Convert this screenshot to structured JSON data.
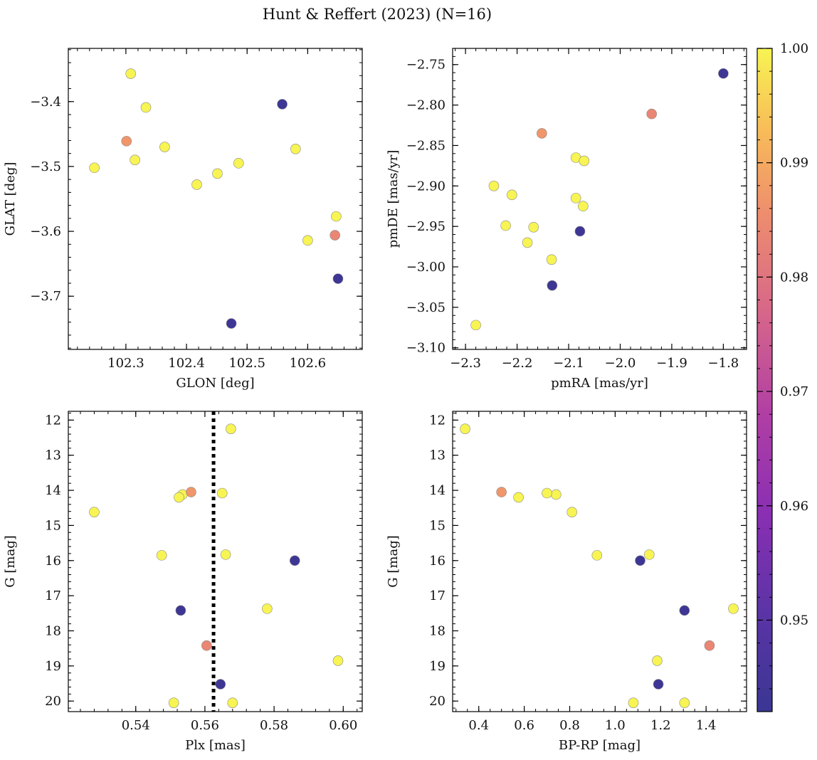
{
  "title": "Hunt & Reffert (2023) (N=16)",
  "colorbar": {
    "min": 0.942,
    "max": 1.0,
    "ticks": [
      0.95,
      0.96,
      0.97,
      0.98,
      0.99,
      1.0
    ],
    "tick_labels": [
      "0.95",
      "0.96",
      "0.97",
      "0.98",
      "0.99",
      "1.00"
    ],
    "colormap": "plasma"
  },
  "stars": [
    {
      "glon": 102.308,
      "glat": -3.357,
      "pmra": -2.28,
      "pmde": -3.072,
      "plx": 0.5675,
      "g": 12.25,
      "bprp": 0.34,
      "prob": 1.0
    },
    {
      "glon": 102.333,
      "glat": -3.409,
      "pmra": -2.245,
      "pmde": -2.9,
      "plx": 0.528,
      "g": 14.62,
      "bprp": 0.81,
      "prob": 1.0
    },
    {
      "glon": 102.301,
      "glat": -3.461,
      "pmra": -2.152,
      "pmde": -2.835,
      "plx": 0.556,
      "g": 14.05,
      "bprp": 0.5,
      "prob": 0.985
    },
    {
      "glon": 102.315,
      "glat": -3.49,
      "pmra": -2.21,
      "pmde": -2.911,
      "plx": 0.5535,
      "g": 14.12,
      "bprp": 0.74,
      "prob": 1.0
    },
    {
      "glon": 102.364,
      "glat": -3.47,
      "pmra": -2.222,
      "pmde": -2.949,
      "plx": 0.5525,
      "g": 14.2,
      "bprp": 0.575,
      "prob": 1.0
    },
    {
      "glon": 102.248,
      "glat": -3.502,
      "pmra": -2.168,
      "pmde": -2.951,
      "plx": 0.565,
      "g": 14.08,
      "bprp": 0.7,
      "prob": 1.0
    },
    {
      "glon": 102.417,
      "glat": -3.528,
      "pmra": -2.18,
      "pmde": -2.97,
      "plx": 0.5475,
      "g": 15.85,
      "bprp": 0.92,
      "prob": 1.0
    },
    {
      "glon": 102.451,
      "glat": -3.511,
      "pmra": -2.133,
      "pmde": -2.991,
      "plx": 0.566,
      "g": 15.83,
      "bprp": 1.15,
      "prob": 1.0
    },
    {
      "glon": 102.486,
      "glat": -3.495,
      "pmra": -2.086,
      "pmde": -2.865,
      "plx": 0.578,
      "g": 17.37,
      "bprp": 1.52,
      "prob": 1.0
    },
    {
      "glon": 102.58,
      "glat": -3.473,
      "pmra": -2.07,
      "pmde": -2.869,
      "plx": 0.5985,
      "g": 18.85,
      "bprp": 1.185,
      "prob": 1.0
    },
    {
      "glon": 102.6,
      "glat": -3.614,
      "pmra": -2.086,
      "pmde": -2.915,
      "plx": 0.568,
      "g": 20.05,
      "bprp": 1.08,
      "prob": 1.0
    },
    {
      "glon": 102.647,
      "glat": -3.577,
      "pmra": -2.072,
      "pmde": -2.925,
      "plx": 0.551,
      "g": 20.05,
      "bprp": 1.305,
      "prob": 1.0
    },
    {
      "glon": 102.645,
      "glat": -3.606,
      "pmra": -1.939,
      "pmde": -2.811,
      "plx": 0.5605,
      "g": 18.42,
      "bprp": 1.415,
      "prob": 0.982
    },
    {
      "glon": 102.558,
      "glat": -3.404,
      "pmra": -1.8,
      "pmde": -2.761,
      "plx": 0.586,
      "g": 16.0,
      "bprp": 1.11,
      "prob": 0.943
    },
    {
      "glon": 102.65,
      "glat": -3.673,
      "pmra": -2.078,
      "pmde": -2.956,
      "plx": 0.553,
      "g": 17.42,
      "bprp": 1.305,
      "prob": 0.943
    },
    {
      "glon": 102.474,
      "glat": -3.742,
      "pmra": -2.132,
      "pmde": -3.023,
      "plx": 0.5645,
      "g": 19.52,
      "bprp": 1.19,
      "prob": 0.943
    }
  ],
  "chart_data": [
    {
      "type": "scatter",
      "id": "p1",
      "x_field": "glon",
      "y_field": "glat",
      "xlabel": "GLON [deg]",
      "ylabel": "GLAT [deg]",
      "xlim": [
        102.205,
        102.69
      ],
      "ylim": [
        -3.782,
        -3.318
      ],
      "xticks": [
        102.3,
        102.4,
        102.5,
        102.6
      ],
      "xtick_labels": [
        "102.3",
        "102.4",
        "102.5",
        "102.6"
      ],
      "yticks": [
        -3.7,
        -3.6,
        -3.5,
        -3.4
      ],
      "ytick_labels": [
        "−3.7",
        "−3.6",
        "−3.5",
        "−3.4"
      ],
      "xminor": 0.02,
      "yminor": 0.02,
      "y_inverted": false
    },
    {
      "type": "scatter",
      "id": "p2",
      "x_field": "pmra",
      "y_field": "pmde",
      "xlabel": "pmRA [mas/yr]",
      "ylabel": "pmDE [mas/yr]",
      "xlim": [
        -2.325,
        -1.755
      ],
      "ylim": [
        -3.102,
        -2.73
      ],
      "xticks": [
        -2.3,
        -2.2,
        -2.1,
        -2.0,
        -1.9,
        -1.8
      ],
      "xtick_labels": [
        "−2.3",
        "−2.2",
        "−2.1",
        "−2.0",
        "−1.9",
        "−1.8"
      ],
      "yticks": [
        -3.1,
        -3.05,
        -3.0,
        -2.95,
        -2.9,
        -2.85,
        -2.8,
        -2.75
      ],
      "ytick_labels": [
        "−3.10",
        "−3.05",
        "−3.00",
        "−2.95",
        "−2.90",
        "−2.85",
        "−2.80",
        "−2.75"
      ],
      "xminor": 0.02,
      "yminor": 0.01,
      "y_inverted": false
    },
    {
      "type": "scatter",
      "id": "p3",
      "x_field": "plx",
      "y_field": "g",
      "xlabel": "Plx [mas]",
      "ylabel": "G [mag]",
      "xlim": [
        0.5205,
        0.6055
      ],
      "ylim": [
        11.75,
        20.3
      ],
      "xticks": [
        0.54,
        0.56,
        0.58,
        0.6
      ],
      "xtick_labels": [
        "0.54",
        "0.56",
        "0.58",
        "0.60"
      ],
      "yticks": [
        12,
        13,
        14,
        15,
        16,
        17,
        18,
        19,
        20
      ],
      "ytick_labels": [
        "12",
        "13",
        "14",
        "15",
        "16",
        "17",
        "18",
        "19",
        "20"
      ],
      "xminor": 0.004,
      "yminor": 0.2,
      "y_inverted": true,
      "vline": {
        "x": 0.5625,
        "style": "dotted"
      }
    },
    {
      "type": "scatter",
      "id": "p4",
      "x_field": "bprp",
      "y_field": "g",
      "xlabel": "BP-RP [mag]",
      "ylabel": "G [mag]",
      "xlim": [
        0.285,
        1.578
      ],
      "ylim": [
        11.75,
        20.3
      ],
      "xticks": [
        0.4,
        0.6,
        0.8,
        1.0,
        1.2,
        1.4
      ],
      "xtick_labels": [
        "0.4",
        "0.6",
        "0.8",
        "1.0",
        "1.2",
        "1.4"
      ],
      "yticks": [
        12,
        13,
        14,
        15,
        16,
        17,
        18,
        19,
        20
      ],
      "ytick_labels": [
        "12",
        "13",
        "14",
        "15",
        "16",
        "17",
        "18",
        "19",
        "20"
      ],
      "xminor": 0.05,
      "yminor": 0.2,
      "y_inverted": true
    }
  ]
}
